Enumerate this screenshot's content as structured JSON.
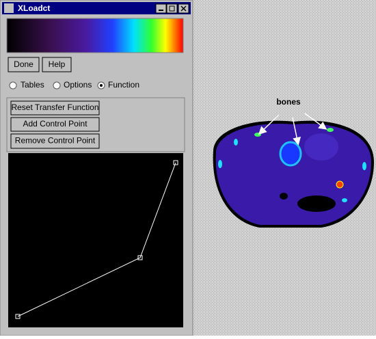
{
  "window": {
    "title": "XLoadct",
    "buttons": [
      "Done",
      "Help"
    ],
    "modes": [
      "Tables",
      "Options",
      "Function"
    ],
    "function_buttons": [
      "Reset Transfer Function",
      "Add Control Point",
      "Remove Control Point"
    ]
  },
  "image": {
    "annotation": "bones"
  }
}
